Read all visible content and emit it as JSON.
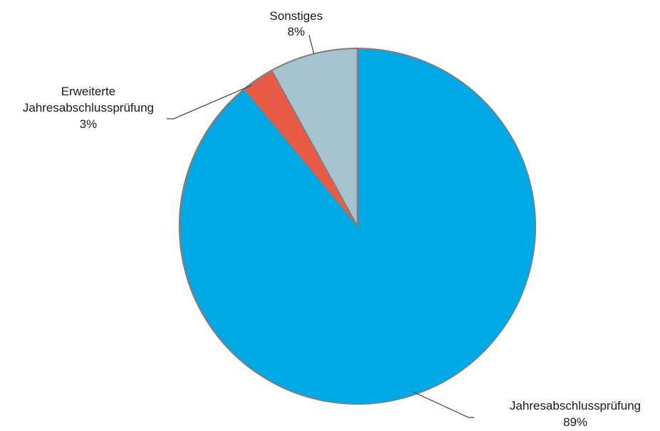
{
  "chart_data": {
    "type": "pie",
    "title": "",
    "start_angle_deg": 0,
    "direction": "clockwise",
    "slices": [
      {
        "label_lines": [
          "Jahresabschlussprüfung",
          "89%"
        ],
        "value": 89,
        "color": "#00a9e6"
      },
      {
        "label_lines": [
          "Erweiterte",
          "Jahresabschlussprüfung",
          "3%"
        ],
        "value": 3,
        "color": "#e85c47"
      },
      {
        "label_lines": [
          "Sonstiges",
          "8%"
        ],
        "value": 8,
        "color": "#a6c3d0"
      }
    ],
    "slice_border_color": "#7f7f7f",
    "leader_line_color": "#404040"
  }
}
